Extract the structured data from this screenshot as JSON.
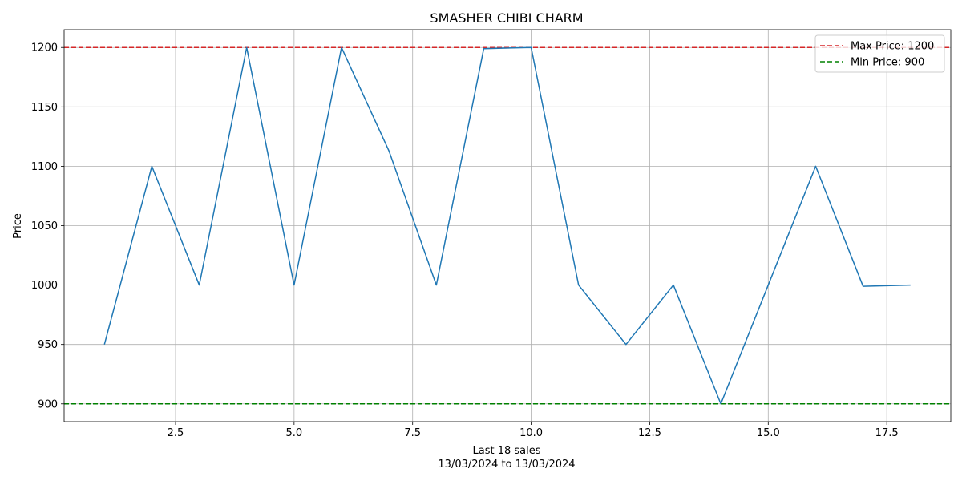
{
  "chart_data": {
    "type": "line",
    "title": "SMASHER CHIBI CHARM",
    "xlabel_line1": "Last 18 sales",
    "xlabel_line2": "13/03/2024 to 13/03/2024",
    "ylabel": "Price",
    "xlim": [
      0.15,
      18.85
    ],
    "ylim": [
      885,
      1215
    ],
    "xticks": [
      2.5,
      5.0,
      7.5,
      10.0,
      12.5,
      15.0,
      17.5
    ],
    "xtick_labels": [
      "2.5",
      "5.0",
      "7.5",
      "10.0",
      "12.5",
      "15.0",
      "17.5"
    ],
    "yticks": [
      900,
      950,
      1000,
      1050,
      1100,
      1150,
      1200
    ],
    "ytick_labels": [
      "900",
      "950",
      "1000",
      "1050",
      "1100",
      "1150",
      "1200"
    ],
    "grid": true,
    "legend_position": "top-right",
    "series": [
      {
        "x": [
          1,
          2,
          3,
          4,
          5,
          6,
          7,
          8,
          9,
          10,
          11,
          12,
          13,
          14,
          15,
          16,
          17,
          18
        ],
        "values": [
          950,
          1100,
          1000,
          1200,
          1000,
          1200,
          1113,
          1000,
          1199,
          1200,
          1000,
          950,
          1000,
          900,
          1000,
          1100,
          999,
          1000
        ],
        "color": "#1f77b4"
      }
    ],
    "reference_lines": [
      {
        "name": "Max Price: 1200",
        "value": 1200,
        "color": "#d62728",
        "style": "dashed"
      },
      {
        "name": "Min Price: 900",
        "value": 900,
        "color": "#008000",
        "style": "dashed"
      }
    ]
  }
}
